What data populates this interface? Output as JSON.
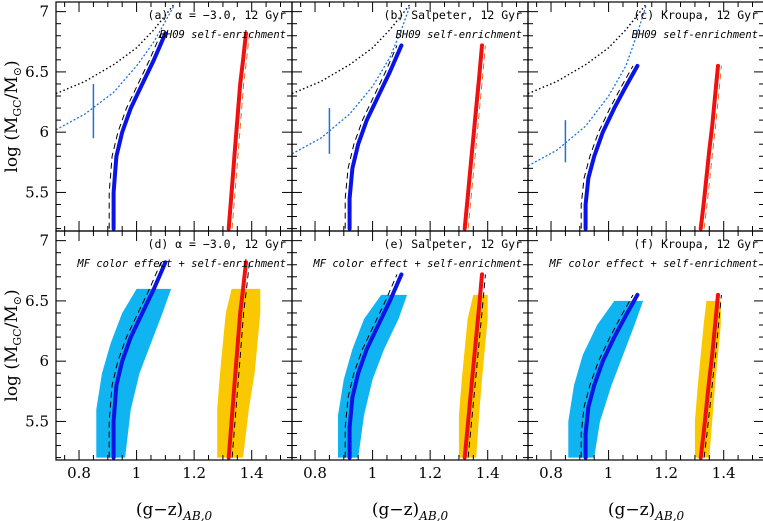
{
  "chart_data": {
    "type": "line",
    "x_ticks": [
      "0.8",
      "1",
      "1.2",
      "1.4"
    ],
    "y_ticks": [
      "5.5",
      "6",
      "6.5",
      "7"
    ],
    "xlabel": "(g−z)AB,0",
    "ylabel": "log (MGC/M⊙)",
    "xlim": [
      0.72,
      1.54
    ],
    "ylim": [
      5.18,
      7.08
    ],
    "grid": false,
    "colors": {
      "metal_poor": "#0a14e6",
      "metal_rich": "#f01010",
      "band_poor": "#10b4f0",
      "band_rich": "#fac800",
      "bh09_curve": "#1a70e0",
      "dotted_black": "#000000",
      "dashed_orange": "#e86a20"
    },
    "panels": [
      {
        "id": "a",
        "title": "(a) α = −3.0, 12 Gyr",
        "subtitle": "BH09 self-enrichment",
        "blue_series": {
          "x": [
            0.92,
            0.92,
            0.93,
            0.95,
            0.98,
            1.02,
            1.06,
            1.1
          ],
          "y": [
            5.2,
            5.5,
            5.8,
            6.0,
            6.2,
            6.4,
            6.6,
            6.82
          ]
        },
        "red_series": {
          "x": [
            1.32,
            1.33,
            1.34,
            1.35,
            1.36,
            1.37,
            1.38
          ],
          "y": [
            5.2,
            5.5,
            5.8,
            6.1,
            6.4,
            6.6,
            6.82
          ]
        },
        "bh09_curve": {
          "x": [
            0.72,
            0.82,
            0.92,
            1.0,
            1.06,
            1.1,
            1.13
          ],
          "y": [
            6.02,
            6.15,
            6.33,
            6.55,
            6.75,
            6.92,
            7.05
          ]
        },
        "dotted_curve": {
          "x": [
            0.72,
            0.82,
            0.92,
            1.0,
            1.06,
            1.1,
            1.13
          ],
          "y": [
            6.32,
            6.42,
            6.56,
            6.7,
            6.85,
            6.97,
            7.06
          ]
        },
        "errorbar": {
          "x": 0.85,
          "y_low": 5.95,
          "y_high": 6.4
        }
      },
      {
        "id": "b",
        "title": "(b) Salpeter, 12 Gyr",
        "subtitle": "BH09 self-enrichment",
        "blue_series": {
          "x": [
            0.92,
            0.92,
            0.93,
            0.95,
            0.98,
            1.02,
            1.06,
            1.1
          ],
          "y": [
            5.2,
            5.45,
            5.7,
            5.9,
            6.1,
            6.3,
            6.5,
            6.72
          ]
        },
        "red_series": {
          "x": [
            1.32,
            1.33,
            1.34,
            1.35,
            1.36,
            1.37,
            1.38
          ],
          "y": [
            5.2,
            5.45,
            5.7,
            5.95,
            6.2,
            6.45,
            6.72
          ]
        },
        "bh09_curve": {
          "x": [
            0.72,
            0.82,
            0.92,
            1.0,
            1.06,
            1.1,
            1.13
          ],
          "y": [
            5.82,
            5.95,
            6.15,
            6.38,
            6.62,
            6.85,
            7.05
          ]
        },
        "dotted_curve": {
          "x": [
            0.72,
            0.82,
            0.92,
            1.0,
            1.06,
            1.1,
            1.13
          ],
          "y": [
            6.32,
            6.42,
            6.56,
            6.7,
            6.85,
            6.97,
            7.06
          ]
        },
        "errorbar": {
          "x": 0.85,
          "y_low": 5.82,
          "y_high": 6.2
        }
      },
      {
        "id": "c",
        "title": "(c) Kroupa, 12 Gyr",
        "subtitle": "BH09 self-enrichment",
        "blue_series": {
          "x": [
            0.92,
            0.92,
            0.93,
            0.95,
            0.98,
            1.02,
            1.06,
            1.1
          ],
          "y": [
            5.2,
            5.4,
            5.62,
            5.8,
            6.0,
            6.2,
            6.38,
            6.55
          ]
        },
        "red_series": {
          "x": [
            1.32,
            1.33,
            1.34,
            1.35,
            1.36,
            1.37,
            1.38
          ],
          "y": [
            5.2,
            5.4,
            5.62,
            5.85,
            6.05,
            6.3,
            6.55
          ]
        },
        "bh09_curve": {
          "x": [
            0.72,
            0.82,
            0.92,
            1.0,
            1.06,
            1.1,
            1.13
          ],
          "y": [
            5.72,
            5.85,
            6.05,
            6.3,
            6.55,
            6.82,
            7.05
          ]
        },
        "dotted_curve": {
          "x": [
            0.72,
            0.82,
            0.92,
            1.0,
            1.06,
            1.1,
            1.13
          ],
          "y": [
            6.32,
            6.42,
            6.56,
            6.7,
            6.85,
            6.97,
            7.06
          ]
        },
        "errorbar": {
          "x": 0.85,
          "y_low": 5.75,
          "y_high": 6.1
        }
      },
      {
        "id": "d",
        "title": "(d) α = −3.0, 12 Gyr",
        "subtitle": "MF color effect + self-enrichment",
        "blue_series": {
          "x": [
            0.92,
            0.92,
            0.93,
            0.95,
            0.98,
            1.02,
            1.06,
            1.1
          ],
          "y": [
            5.2,
            5.5,
            5.8,
            6.0,
            6.2,
            6.4,
            6.6,
            6.82
          ]
        },
        "red_series": {
          "x": [
            1.32,
            1.33,
            1.34,
            1.35,
            1.36,
            1.37,
            1.38
          ],
          "y": [
            5.2,
            5.5,
            5.8,
            6.1,
            6.4,
            6.6,
            6.82
          ]
        },
        "blue_band": {
          "x_left": [
            0.86,
            0.86,
            0.88,
            0.91,
            0.95,
            1.0
          ],
          "x_right": [
            0.96,
            0.98,
            1.01,
            1.05,
            1.09,
            1.12
          ],
          "y": [
            5.2,
            5.6,
            5.9,
            6.15,
            6.4,
            6.6
          ]
        },
        "yellow_band": {
          "x_left": [
            1.28,
            1.28,
            1.29,
            1.3,
            1.31,
            1.33
          ],
          "x_right": [
            1.37,
            1.39,
            1.41,
            1.42,
            1.43,
            1.43
          ],
          "y": [
            5.2,
            5.6,
            5.9,
            6.15,
            6.4,
            6.6
          ]
        }
      },
      {
        "id": "e",
        "title": "(e) Salpeter, 12 Gyr",
        "subtitle": "MF color effect + self-enrichment",
        "blue_series": {
          "x": [
            0.92,
            0.92,
            0.93,
            0.95,
            0.98,
            1.02,
            1.06,
            1.1
          ],
          "y": [
            5.2,
            5.45,
            5.7,
            5.9,
            6.1,
            6.3,
            6.5,
            6.72
          ]
        },
        "red_series": {
          "x": [
            1.32,
            1.33,
            1.34,
            1.35,
            1.36,
            1.37,
            1.38
          ],
          "y": [
            5.2,
            5.45,
            5.7,
            5.95,
            6.2,
            6.45,
            6.72
          ]
        },
        "blue_band": {
          "x_left": [
            0.88,
            0.88,
            0.9,
            0.93,
            0.97,
            1.03
          ],
          "x_right": [
            0.95,
            0.97,
            1.0,
            1.04,
            1.09,
            1.12
          ],
          "y": [
            5.2,
            5.55,
            5.85,
            6.1,
            6.35,
            6.55
          ]
        },
        "yellow_band": {
          "x_left": [
            1.3,
            1.3,
            1.31,
            1.32,
            1.33,
            1.35
          ],
          "x_right": [
            1.36,
            1.37,
            1.38,
            1.39,
            1.4,
            1.4
          ],
          "y": [
            5.2,
            5.55,
            5.85,
            6.1,
            6.35,
            6.55
          ]
        }
      },
      {
        "id": "f",
        "title": "(f) Kroupa, 12 Gyr",
        "subtitle": "MF color effect + self-enrichment",
        "blue_series": {
          "x": [
            0.92,
            0.92,
            0.93,
            0.95,
            0.98,
            1.02,
            1.06,
            1.1
          ],
          "y": [
            5.2,
            5.4,
            5.62,
            5.8,
            6.0,
            6.2,
            6.38,
            6.55
          ]
        },
        "red_series": {
          "x": [
            1.32,
            1.33,
            1.34,
            1.35,
            1.36,
            1.37,
            1.38
          ],
          "y": [
            5.2,
            5.4,
            5.62,
            5.85,
            6.05,
            6.3,
            6.55
          ]
        },
        "blue_band": {
          "x_left": [
            0.86,
            0.86,
            0.88,
            0.91,
            0.96,
            1.02
          ],
          "x_right": [
            0.95,
            0.97,
            1.01,
            1.05,
            1.09,
            1.12
          ],
          "y": [
            5.2,
            5.5,
            5.8,
            6.05,
            6.3,
            6.5
          ]
        },
        "yellow_band": {
          "x_left": [
            1.3,
            1.3,
            1.31,
            1.32,
            1.33,
            1.34
          ],
          "x_right": [
            1.35,
            1.36,
            1.37,
            1.38,
            1.39,
            1.39
          ],
          "y": [
            5.2,
            5.5,
            5.8,
            6.05,
            6.3,
            6.5
          ]
        }
      }
    ]
  }
}
